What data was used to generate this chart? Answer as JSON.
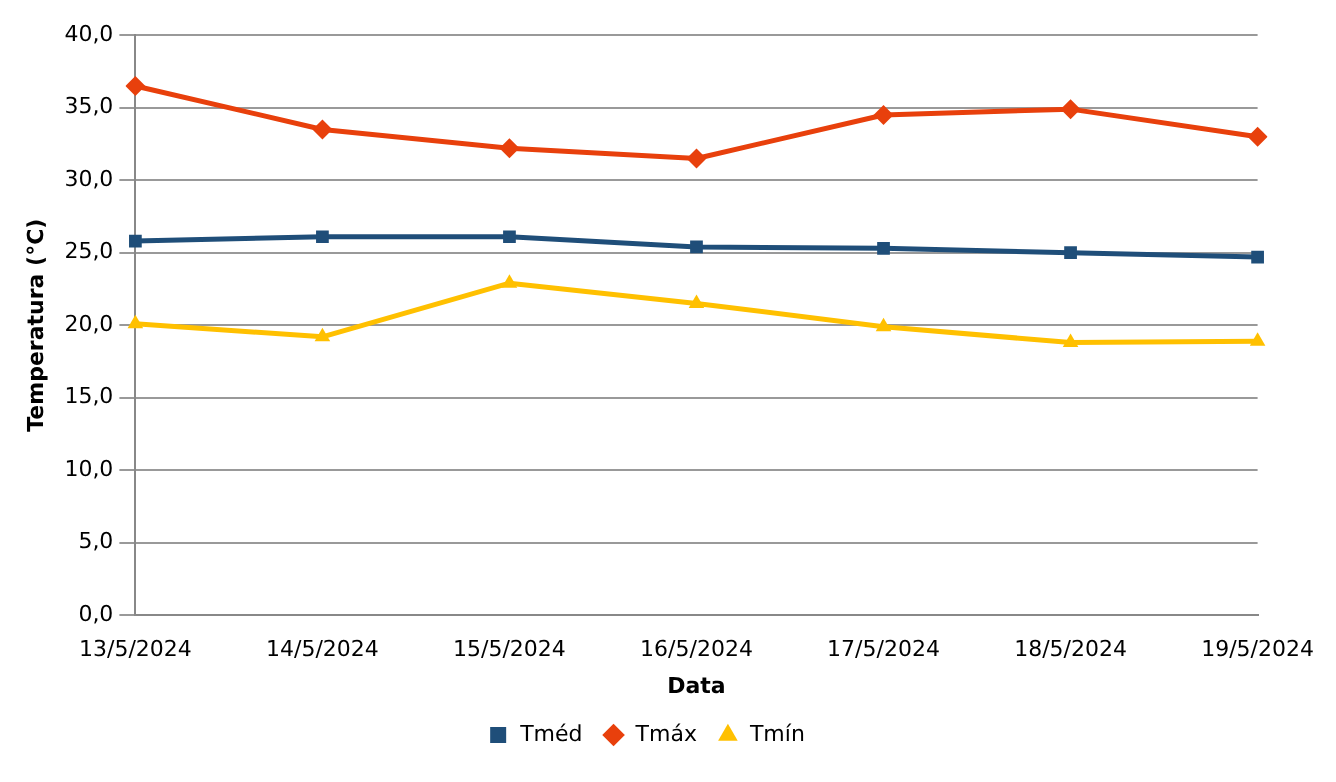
{
  "chart_data": {
    "type": "line",
    "xlabel": "Data",
    "ylabel": "Temperatura (°C)",
    "categories": [
      "13/5/2024",
      "14/5/2024",
      "15/5/2024",
      "16/5/2024",
      "17/5/2024",
      "18/5/2024",
      "19/5/2024"
    ],
    "series": [
      {
        "name": "Tméd",
        "color": "#1f4e79",
        "marker": "square",
        "values": [
          25.8,
          26.1,
          26.1,
          25.4,
          25.3,
          25.0,
          24.7
        ]
      },
      {
        "name": "Tmáx",
        "color": "#e8400c",
        "marker": "diamond",
        "values": [
          36.5,
          33.5,
          32.2,
          31.5,
          34.5,
          34.9,
          33.0
        ]
      },
      {
        "name": "Tmín",
        "color": "#ffc000",
        "marker": "triangle",
        "values": [
          20.1,
          19.2,
          22.9,
          21.5,
          19.9,
          18.8,
          18.9
        ]
      }
    ],
    "ylim": [
      0,
      40
    ],
    "yticks": [
      {
        "value": 0,
        "label": "0,0"
      },
      {
        "value": 5,
        "label": "5,0"
      },
      {
        "value": 10,
        "label": "10,0"
      },
      {
        "value": 15,
        "label": "15,0"
      },
      {
        "value": 20,
        "label": "20,0"
      },
      {
        "value": 25,
        "label": "25,0"
      },
      {
        "value": 30,
        "label": "30,0"
      },
      {
        "value": 35,
        "label": "35,0"
      },
      {
        "value": 40,
        "label": "40,0"
      }
    ],
    "grid": "y",
    "legend": "bottom",
    "line_style": "solid"
  }
}
